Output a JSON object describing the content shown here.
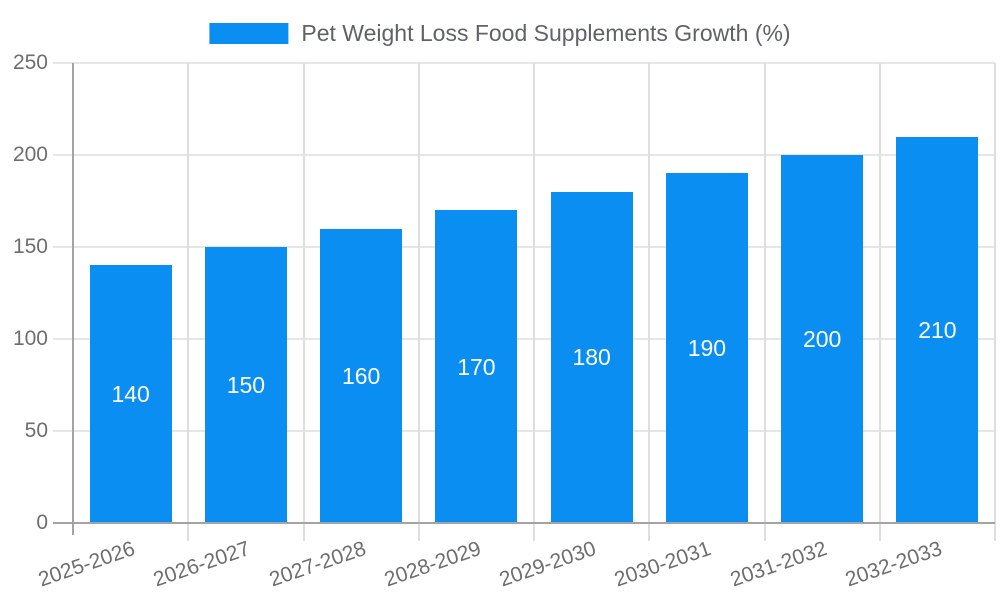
{
  "legend": {
    "label": "Pet Weight Loss Food Supplements Growth (%)",
    "swatch_color": "#0a8ef2",
    "swatch_icon": "legend-color-swatch"
  },
  "colors": {
    "bar": "#0a8ef2",
    "value_label": "#ffffff",
    "grid_horizontal": "#e6e6e6",
    "grid_vertical": "#dedede",
    "axis": "#a3a3a3",
    "tick_text": "#6e6e6e",
    "legend_text": "#5f6368",
    "background": "#ffffff"
  },
  "chart_data": {
    "type": "bar",
    "title": "Pet Weight Loss Food Supplements Growth (%)",
    "categories": [
      "2025-2026",
      "2026-2027",
      "2027-2028",
      "2028-2029",
      "2029-2030",
      "2030-2031",
      "2031-2032",
      "2032-2033"
    ],
    "values": [
      140,
      150,
      160,
      170,
      180,
      190,
      200,
      210
    ],
    "series": [
      {
        "name": "Pet Weight Loss Food Supplements Growth (%)",
        "values": [
          140,
          150,
          160,
          170,
          180,
          190,
          200,
          210
        ]
      }
    ],
    "value_labels_shown": true,
    "value_label_position": "center-inside",
    "xlabel": "",
    "ylabel": "",
    "ylim": [
      0,
      250
    ],
    "yticks": [
      0,
      50,
      100,
      150,
      200,
      250
    ],
    "grid": true,
    "legend_position": "top-center",
    "xtick_rotation_deg": -19,
    "bar_color": "#0a8ef2"
  }
}
